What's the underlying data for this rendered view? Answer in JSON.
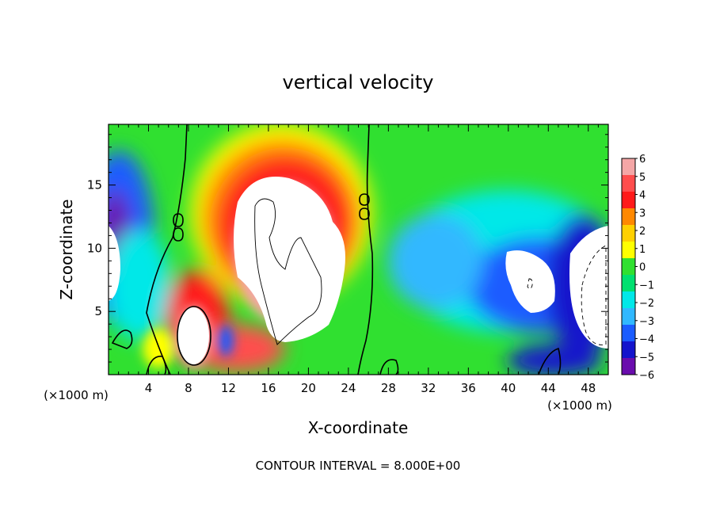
{
  "chart_data": {
    "type": "heatmap",
    "title": "vertical velocity",
    "xlabel": "X-coordinate",
    "ylabel": "Z-coordinate",
    "x_units_left": "(×1000 m)",
    "x_units_right": "(×1000 m)",
    "xlim": [
      0,
      50
    ],
    "ylim": [
      0,
      19.8
    ],
    "x_ticks": [
      4,
      8,
      12,
      16,
      20,
      24,
      28,
      32,
      36,
      40,
      44,
      48
    ],
    "y_ticks": [
      5,
      10,
      15
    ],
    "colorbar": {
      "min": -6,
      "max": 6,
      "labels": [
        "6",
        "5",
        "4",
        "3",
        "2",
        "1",
        "0",
        "−1",
        "−2",
        "−3",
        "−4",
        "−5",
        "−6"
      ],
      "colors": [
        "#f4a6a6",
        "#ff4d4d",
        "#ff1a1a",
        "#ff8800",
        "#ffd000",
        "#ffff00",
        "#30e030",
        "#00e070",
        "#00e8e8",
        "#30b8ff",
        "#1a5cff",
        "#1414cc",
        "#6a0dad"
      ]
    },
    "contour_lines": [
      {
        "level": 0,
        "label": "0.0"
      }
    ],
    "contour_interval_text": "CONTOUR INTERVAL = 8.000E+00"
  }
}
